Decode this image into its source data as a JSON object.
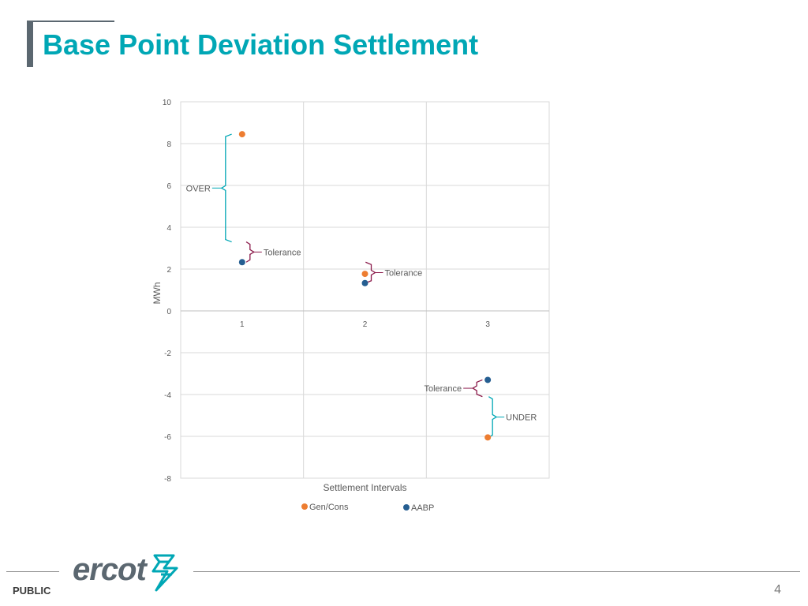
{
  "page": {
    "title": "Base Point Deviation Settlement",
    "footer_label": "PUBLIC",
    "page_number": "4",
    "logo_text": "ercot",
    "accent_color": "#00a7b5"
  },
  "chart_data": {
    "type": "scatter",
    "title": "",
    "xlabel": "Settlement Intervals",
    "ylabel": "MWh",
    "xlim": [
      0.5,
      3.5
    ],
    "ylim": [
      -8,
      10
    ],
    "yticks": [
      10,
      8,
      6,
      4,
      2,
      0,
      -2,
      -4,
      -6,
      -8
    ],
    "xticks": [
      1,
      2,
      3
    ],
    "grid": true,
    "legend_position": "bottom",
    "series": [
      {
        "name": "Gen/Cons",
        "color": "#ed7d31",
        "points": [
          [
            1,
            8.45
          ],
          [
            2,
            1.77
          ],
          [
            3,
            -6.05
          ]
        ]
      },
      {
        "name": "AABP",
        "color": "#255e91",
        "points": [
          [
            1,
            2.33
          ],
          [
            2,
            1.33
          ],
          [
            3,
            -3.3
          ]
        ]
      }
    ],
    "annotations": [
      {
        "label": "OVER",
        "color": "#00a7b5",
        "x": 1,
        "y_from": 8.45,
        "y_to": 3.3,
        "side": "left"
      },
      {
        "label": "Tolerance",
        "color": "#8b1a4a",
        "x": 1,
        "y_from": 3.3,
        "y_to": 2.33,
        "side": "right"
      },
      {
        "label": "Tolerance",
        "color": "#8b1a4a",
        "x": 2,
        "y_from": 2.33,
        "y_to": 1.33,
        "side": "right"
      },
      {
        "label": "Tolerance",
        "color": "#8b1a4a",
        "x": 3,
        "y_from": -3.3,
        "y_to": -4.1,
        "side": "left"
      },
      {
        "label": "UNDER",
        "color": "#00a7b5",
        "x": 3,
        "y_from": -4.1,
        "y_to": -6.05,
        "side": "right"
      }
    ]
  }
}
